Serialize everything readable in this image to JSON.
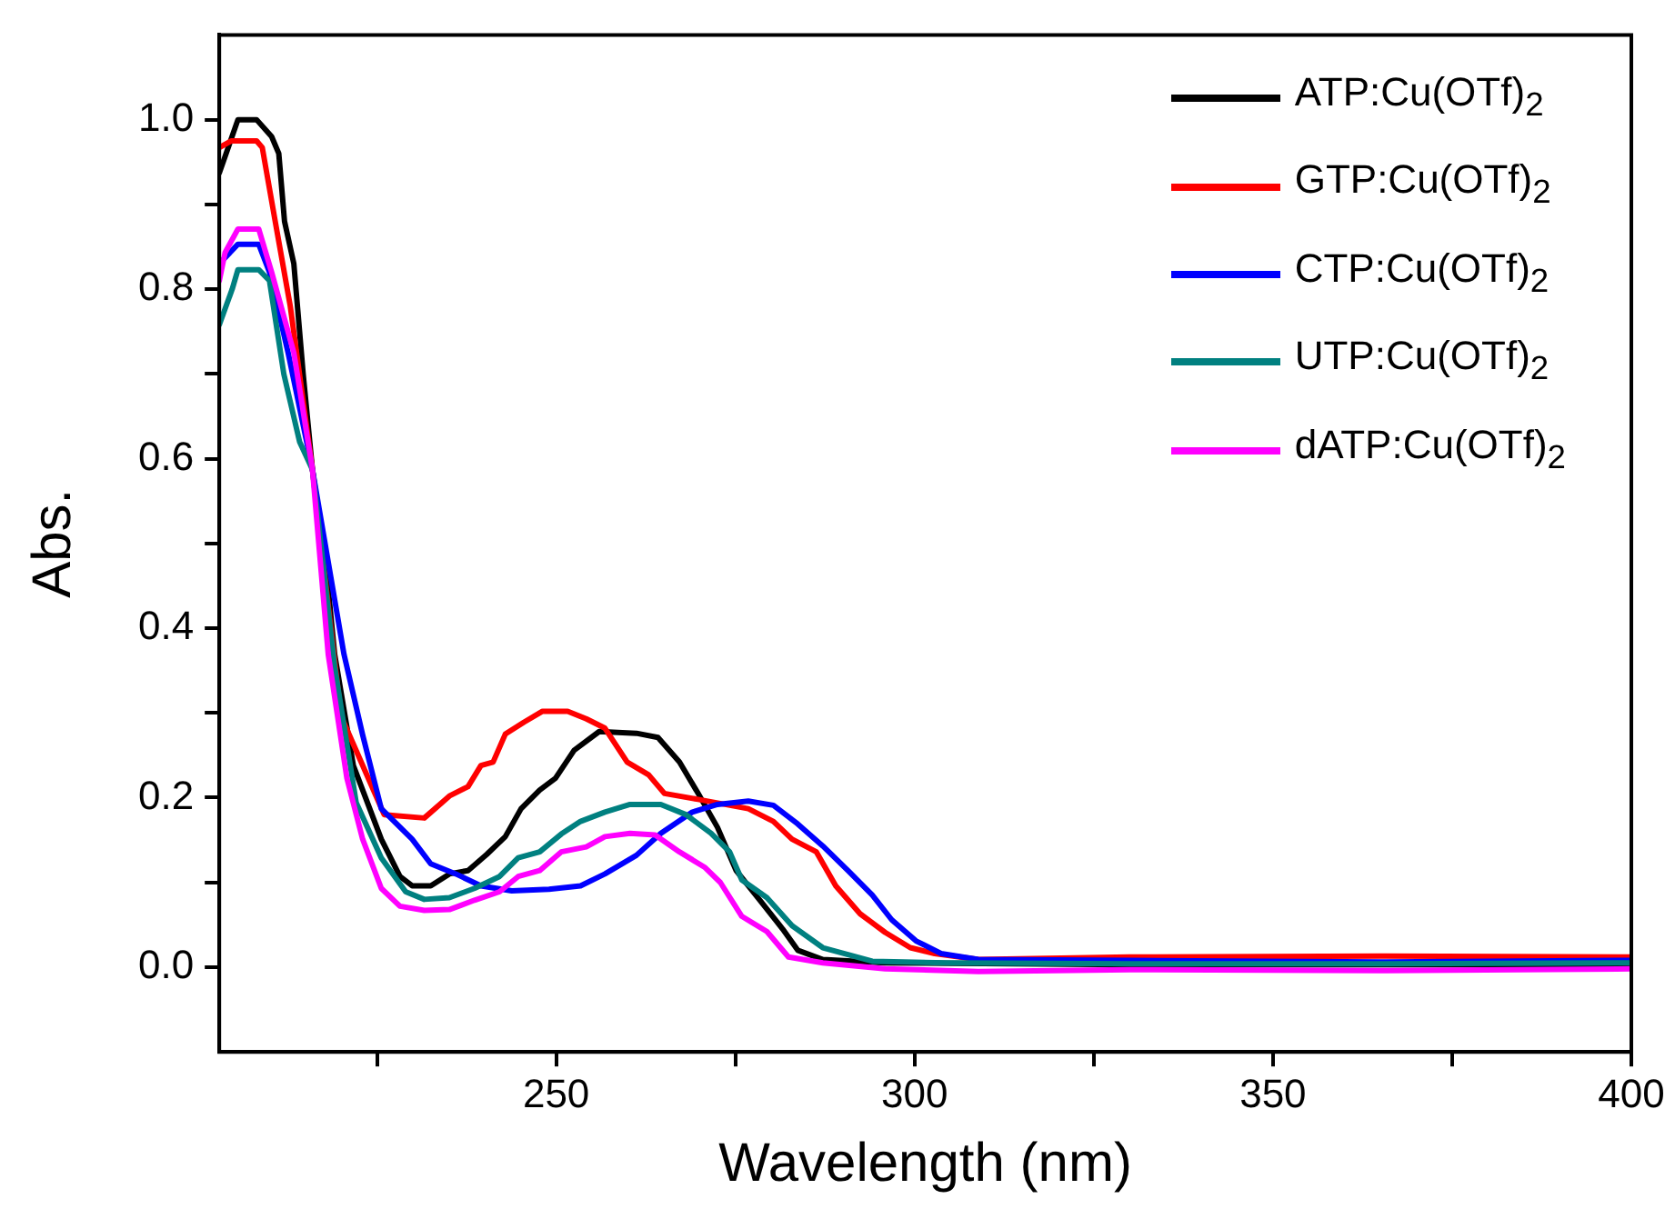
{
  "chart_data": {
    "type": "line",
    "xlabel": "Wavelength (nm)",
    "ylabel": "Abs.",
    "xlim": [
      203,
      400
    ],
    "ylim": [
      -0.1,
      1.1
    ],
    "xticks": [
      {
        "value": 225,
        "label": null
      },
      250,
      {
        "value": 275,
        "label": null
      },
      300,
      {
        "value": 325,
        "label": null
      },
      350,
      {
        "value": 375,
        "label": null
      },
      400
    ],
    "yticks": [
      {
        "value": 0,
        "label": "0.0"
      },
      {
        "value": 0.1,
        "label": null
      },
      {
        "value": 0.2,
        "label": "0.2"
      },
      {
        "value": 0.3,
        "label": null
      },
      {
        "value": 0.4,
        "label": "0.4"
      },
      {
        "value": 0.5,
        "label": null
      },
      {
        "value": 0.6,
        "label": "0.6"
      },
      {
        "value": 0.7,
        "label": null
      },
      {
        "value": 0.8,
        "label": "0.8"
      },
      {
        "value": 0.9,
        "label": null
      },
      {
        "value": 1.0,
        "label": "1.0"
      }
    ],
    "grid": false,
    "legend": "top right",
    "marker": "none",
    "line_style": "solid",
    "series": [
      {
        "name": "ATP:Cu(OTf)$_{2}$",
        "color": "#000000",
        "x": [
          203,
          205.6,
          208.2,
          210.3,
          211.3,
          212.1,
          213.4,
          214.7,
          216,
          217.8,
          219.1,
          221.7,
          225.6,
          228.2,
          229.9,
          232.5,
          235.1,
          237.7,
          240.3,
          242.9,
          245.1,
          247.7,
          249.9,
          252.5,
          256,
          261.2,
          264.2,
          267.2,
          269.8,
          272.5,
          275.1,
          278.5,
          281.6,
          283.7,
          287.2,
          295.9,
          330,
          365,
          400
        ],
        "values": [
          0.937,
          1.0,
          1.0,
          0.98,
          0.96,
          0.88,
          0.83,
          0.7,
          0.587,
          0.48,
          0.369,
          0.238,
          0.151,
          0.107,
          0.096,
          0.096,
          0.11,
          0.114,
          0.133,
          0.154,
          0.187,
          0.209,
          0.223,
          0.256,
          0.278,
          0.276,
          0.271,
          0.242,
          0.205,
          0.165,
          0.114,
          0.078,
          0.045,
          0.02,
          0.009,
          0.005,
          0.003,
          0.003,
          0.003
        ]
      },
      {
        "name": "GTP:Cu(OTf)$_{2}$",
        "color": "#ff0000",
        "x": [
          203,
          204.7,
          208.2,
          209,
          210.8,
          212.9,
          216,
          220,
          223,
          226,
          231.6,
          235.1,
          237.7,
          239.5,
          241.2,
          242.9,
          245.5,
          248.1,
          251.6,
          254.2,
          256.8,
          259.9,
          262.9,
          265.1,
          269.8,
          276.8,
          280.3,
          282.9,
          286.3,
          289,
          292.4,
          295.9,
          299.4,
          302.8,
          308.9,
          330,
          365,
          400
        ],
        "values": [
          0.967,
          0.975,
          0.975,
          0.967,
          0.88,
          0.78,
          0.587,
          0.296,
          0.238,
          0.18,
          0.176,
          0.202,
          0.213,
          0.238,
          0.242,
          0.275,
          0.289,
          0.302,
          0.302,
          0.293,
          0.282,
          0.242,
          0.227,
          0.205,
          0.198,
          0.187,
          0.172,
          0.151,
          0.136,
          0.096,
          0.063,
          0.041,
          0.023,
          0.016,
          0.009,
          0.012,
          0.013,
          0.012
        ]
      },
      {
        "name": "CTP:Cu(OTf)$_{2}$",
        "color": "#0000ff",
        "x": [
          203,
          205.6,
          208.5,
          210,
          212.6,
          216,
          220.4,
          223,
          225.6,
          229.9,
          232.5,
          236,
          239.5,
          243.8,
          249,
          253.4,
          256.8,
          261.2,
          264.6,
          269,
          272.5,
          276.8,
          280.3,
          283.7,
          287.2,
          290.7,
          294.1,
          296.8,
          300.2,
          303.7,
          308.9,
          330,
          365,
          400
        ],
        "values": [
          0.83,
          0.853,
          0.853,
          0.82,
          0.725,
          0.587,
          0.369,
          0.274,
          0.187,
          0.151,
          0.122,
          0.11,
          0.096,
          0.09,
          0.092,
          0.096,
          0.11,
          0.132,
          0.158,
          0.183,
          0.192,
          0.196,
          0.191,
          0.169,
          0.143,
          0.114,
          0.085,
          0.056,
          0.031,
          0.016,
          0.009,
          0.008,
          0.006,
          0.008
        ]
      },
      {
        "name": "UTP:Cu(OTf)$_{2}$",
        "color": "#008080",
        "x": [
          203,
          204.8,
          205.6,
          208.5,
          210,
          212,
          214.2,
          216,
          219.1,
          222.1,
          225.6,
          229,
          231.6,
          235.1,
          238.6,
          242.1,
          244.7,
          247.7,
          250.7,
          253.4,
          256.8,
          260.3,
          264.6,
          268.1,
          271.6,
          274.2,
          275.9,
          279.4,
          282.9,
          287.2,
          294.1,
          304.6,
          330,
          365,
          400
        ],
        "values": [
          0.758,
          0.8,
          0.823,
          0.823,
          0.81,
          0.7,
          0.62,
          0.587,
          0.354,
          0.194,
          0.129,
          0.089,
          0.08,
          0.082,
          0.093,
          0.107,
          0.129,
          0.136,
          0.157,
          0.172,
          0.183,
          0.192,
          0.192,
          0.18,
          0.158,
          0.136,
          0.103,
          0.082,
          0.049,
          0.023,
          0.007,
          0.005,
          0.004,
          0.004,
          0.005
        ]
      },
      {
        "name": "dATP:Cu(OTf)$_{2}$",
        "color": "#ff00ff",
        "x": [
          203,
          203.8,
          205.6,
          208.5,
          210.3,
          213.4,
          216,
          218.2,
          220.8,
          223,
          225.6,
          228.2,
          231.6,
          235.1,
          238.6,
          242.1,
          244.7,
          247.7,
          250.7,
          254.2,
          256.8,
          260.3,
          263.8,
          267.2,
          270.7,
          272.9,
          275.9,
          279.4,
          282.4,
          287.2,
          295.9,
          308.9,
          330,
          365,
          400
        ],
        "values": [
          0.81,
          0.843,
          0.871,
          0.871,
          0.82,
          0.725,
          0.587,
          0.369,
          0.223,
          0.151,
          0.093,
          0.072,
          0.067,
          0.068,
          0.079,
          0.089,
          0.107,
          0.114,
          0.136,
          0.142,
          0.154,
          0.158,
          0.156,
          0.136,
          0.118,
          0.1,
          0.06,
          0.042,
          0.012,
          0.005,
          -0.002,
          -0.005,
          -0.003,
          -0.004,
          -0.002
        ]
      }
    ]
  }
}
